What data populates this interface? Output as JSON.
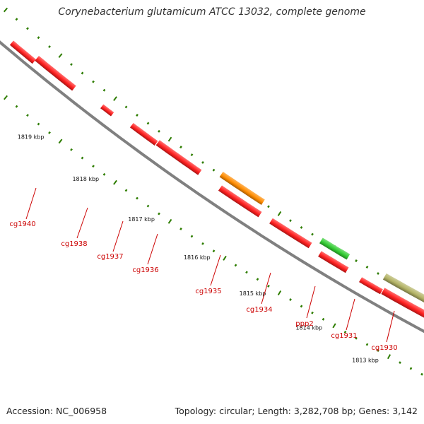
{
  "title": "Corynebacterium glutamicum ATCC 13032, complete genome",
  "footer": {
    "accession": "Accession: NC_006958",
    "summary": "Topology: circular; Length: 3,282,708 bp; Genes: 3,142"
  },
  "ruler": {
    "labels": [
      "1819 kbp",
      "1818 kbp",
      "1817 kbp",
      "1816 kbp",
      "1815 kbp",
      "1814 kbp",
      "1813 kbp"
    ]
  },
  "genes": [
    {
      "name": "cg1940",
      "color": "#ff2020"
    },
    {
      "name": "cg1938",
      "color": "#ff2020"
    },
    {
      "name": "cg1937",
      "color": "#ff2020"
    },
    {
      "name": "cg1936",
      "color": "#ff2020"
    },
    {
      "name": "cg1935",
      "color": "#ff8c00"
    },
    {
      "name": "cg1934",
      "color": "#ff2020"
    },
    {
      "name": "ppp2",
      "color": "#33cc33"
    },
    {
      "name": "cg1931",
      "color": "#ff2020"
    },
    {
      "name": "cg1930",
      "color": "#b3b366"
    }
  ],
  "colors": {
    "backbone": "#808080",
    "tick": "#2e7d00",
    "label_line": "#cc0000"
  }
}
